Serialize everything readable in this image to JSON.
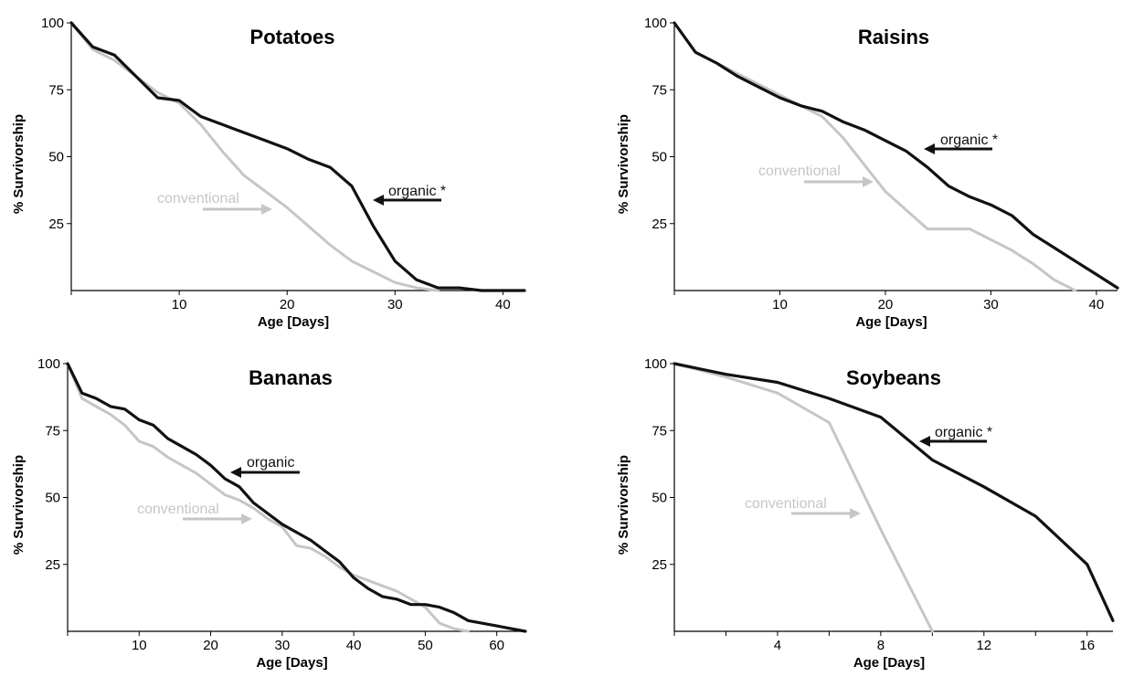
{
  "colors": {
    "organic": "#111111",
    "conventional": "#c6c6c6",
    "axis": "#000000",
    "background": "#ffffff"
  },
  "chart_data": [
    {
      "type": "line",
      "title": "Potatoes",
      "xlabel": "Age [Days]",
      "ylabel": "% Survivorship",
      "xlim": [
        0,
        42
      ],
      "ylim": [
        0,
        100
      ],
      "xticks": [
        0,
        10,
        20,
        30,
        40
      ],
      "xtick_labels": [
        "10",
        "20",
        "30",
        "40"
      ],
      "yticks": [
        25,
        50,
        75,
        100
      ],
      "ytick_labels": [
        "25",
        "50",
        "75",
        "100"
      ],
      "series": [
        {
          "name": "organic *",
          "color": "organic",
          "x": [
            0,
            2,
            4,
            6,
            8,
            10,
            12,
            14,
            16,
            18,
            20,
            22,
            24,
            26,
            28,
            30,
            32,
            34,
            36,
            38,
            40,
            42
          ],
          "y": [
            100,
            91,
            88,
            80,
            72,
            71,
            65,
            62,
            59,
            56,
            53,
            49,
            46,
            39,
            24,
            11,
            4,
            1,
            1,
            0,
            0,
            0
          ]
        },
        {
          "name": "conventional",
          "color": "conventional",
          "x": [
            0,
            2,
            4,
            6,
            8,
            10,
            12,
            14,
            16,
            18,
            20,
            22,
            24,
            26,
            28,
            30,
            32,
            34
          ],
          "y": [
            100,
            90,
            86,
            80,
            74,
            70,
            62,
            52,
            43,
            37,
            31,
            24,
            17,
            11,
            7,
            3,
            1,
            0
          ]
        }
      ],
      "annotations": [
        {
          "text": "organic *",
          "series": "organic *"
        },
        {
          "text": "conventional",
          "series": "conventional"
        }
      ]
    },
    {
      "type": "line",
      "title": "Raisins",
      "xlabel": "Age [Days]",
      "ylabel": "% Survivorship",
      "xlim": [
        0,
        42
      ],
      "ylim": [
        0,
        100
      ],
      "xticks": [
        0,
        10,
        20,
        30,
        40
      ],
      "xtick_labels": [
        "10",
        "20",
        "30",
        "40"
      ],
      "yticks": [
        25,
        50,
        75,
        100
      ],
      "ytick_labels": [
        "25",
        "50",
        "75",
        "100"
      ],
      "series": [
        {
          "name": "organic *",
          "color": "organic",
          "x": [
            0,
            2,
            4,
            6,
            8,
            10,
            12,
            14,
            16,
            18,
            20,
            22,
            24,
            26,
            28,
            30,
            32,
            34,
            36,
            38,
            40,
            42
          ],
          "y": [
            100,
            89,
            85,
            80,
            76,
            72,
            69,
            67,
            63,
            60,
            56,
            52,
            46,
            39,
            35,
            32,
            28,
            21,
            16,
            11,
            6,
            1
          ]
        },
        {
          "name": "conventional",
          "color": "conventional",
          "x": [
            0,
            2,
            4,
            6,
            8,
            10,
            12,
            14,
            16,
            18,
            20,
            22,
            24,
            26,
            28,
            30,
            32,
            34,
            36,
            38
          ],
          "y": [
            100,
            89,
            85,
            81,
            77,
            73,
            69,
            65,
            57,
            47,
            37,
            30,
            23,
            23,
            23,
            19,
            15,
            10,
            4,
            0
          ]
        }
      ],
      "annotations": [
        {
          "text": "organic *",
          "series": "organic *"
        },
        {
          "text": "conventional",
          "series": "conventional"
        }
      ]
    },
    {
      "type": "line",
      "title": "Bananas",
      "xlabel": "Age [Days]",
      "ylabel": "% Survivorship",
      "xlim": [
        0,
        64
      ],
      "ylim": [
        0,
        100
      ],
      "xticks": [
        0,
        10,
        20,
        30,
        40,
        50,
        60
      ],
      "xtick_labels": [
        "10",
        "20",
        "30",
        "40",
        "50",
        "60"
      ],
      "yticks": [
        25,
        50,
        75,
        100
      ],
      "ytick_labels": [
        "25",
        "50",
        "75",
        "100"
      ],
      "series": [
        {
          "name": "organic",
          "color": "organic",
          "x": [
            0,
            2,
            4,
            6,
            8,
            10,
            12,
            14,
            16,
            18,
            20,
            22,
            24,
            26,
            28,
            30,
            32,
            34,
            36,
            38,
            40,
            42,
            44,
            46,
            48,
            50,
            52,
            54,
            56,
            58,
            60,
            62,
            64
          ],
          "y": [
            100,
            89,
            87,
            84,
            83,
            79,
            77,
            72,
            69,
            66,
            62,
            57,
            54,
            48,
            44,
            40,
            37,
            34,
            30,
            26,
            20,
            16,
            13,
            12,
            10,
            10,
            9,
            7,
            4,
            3,
            2,
            1,
            0
          ]
        },
        {
          "name": "conventional",
          "color": "conventional",
          "x": [
            0,
            2,
            4,
            6,
            8,
            10,
            12,
            14,
            16,
            18,
            20,
            22,
            24,
            26,
            28,
            30,
            32,
            34,
            36,
            38,
            40,
            42,
            44,
            46,
            48,
            50,
            52,
            54,
            56
          ],
          "y": [
            100,
            87,
            84,
            81,
            77,
            71,
            69,
            65,
            62,
            59,
            55,
            51,
            49,
            46,
            42,
            39,
            32,
            31,
            28,
            24,
            21,
            19,
            17,
            15,
            12,
            9,
            3,
            1,
            0
          ]
        }
      ],
      "annotations": [
        {
          "text": "organic",
          "series": "organic"
        },
        {
          "text": "conventional",
          "series": "conventional"
        }
      ]
    },
    {
      "type": "line",
      "title": "Soybeans",
      "xlabel": "Age [Days]",
      "ylabel": "% Survivorship",
      "xlim": [
        0,
        17
      ],
      "ylim": [
        0,
        100
      ],
      "xticks": [
        0,
        2,
        4,
        6,
        8,
        10,
        12,
        14,
        16
      ],
      "xtick_labels": [
        "4",
        "8",
        "12",
        "16"
      ],
      "yticks": [
        25,
        50,
        75,
        100
      ],
      "ytick_labels": [
        "25",
        "50",
        "75",
        "100"
      ],
      "series": [
        {
          "name": "organic *",
          "color": "organic",
          "x": [
            0,
            2,
            4,
            6,
            8,
            10,
            12,
            14,
            16,
            17
          ],
          "y": [
            100,
            96,
            93,
            87,
            80,
            64,
            54,
            43,
            25,
            4
          ]
        },
        {
          "name": "conventional",
          "color": "conventional",
          "x": [
            0,
            2,
            4,
            6,
            8,
            10
          ],
          "y": [
            100,
            95,
            89,
            78,
            38,
            0
          ]
        }
      ],
      "annotations": [
        {
          "text": "organic *",
          "series": "organic *"
        },
        {
          "text": "conventional",
          "series": "conventional"
        }
      ]
    }
  ]
}
